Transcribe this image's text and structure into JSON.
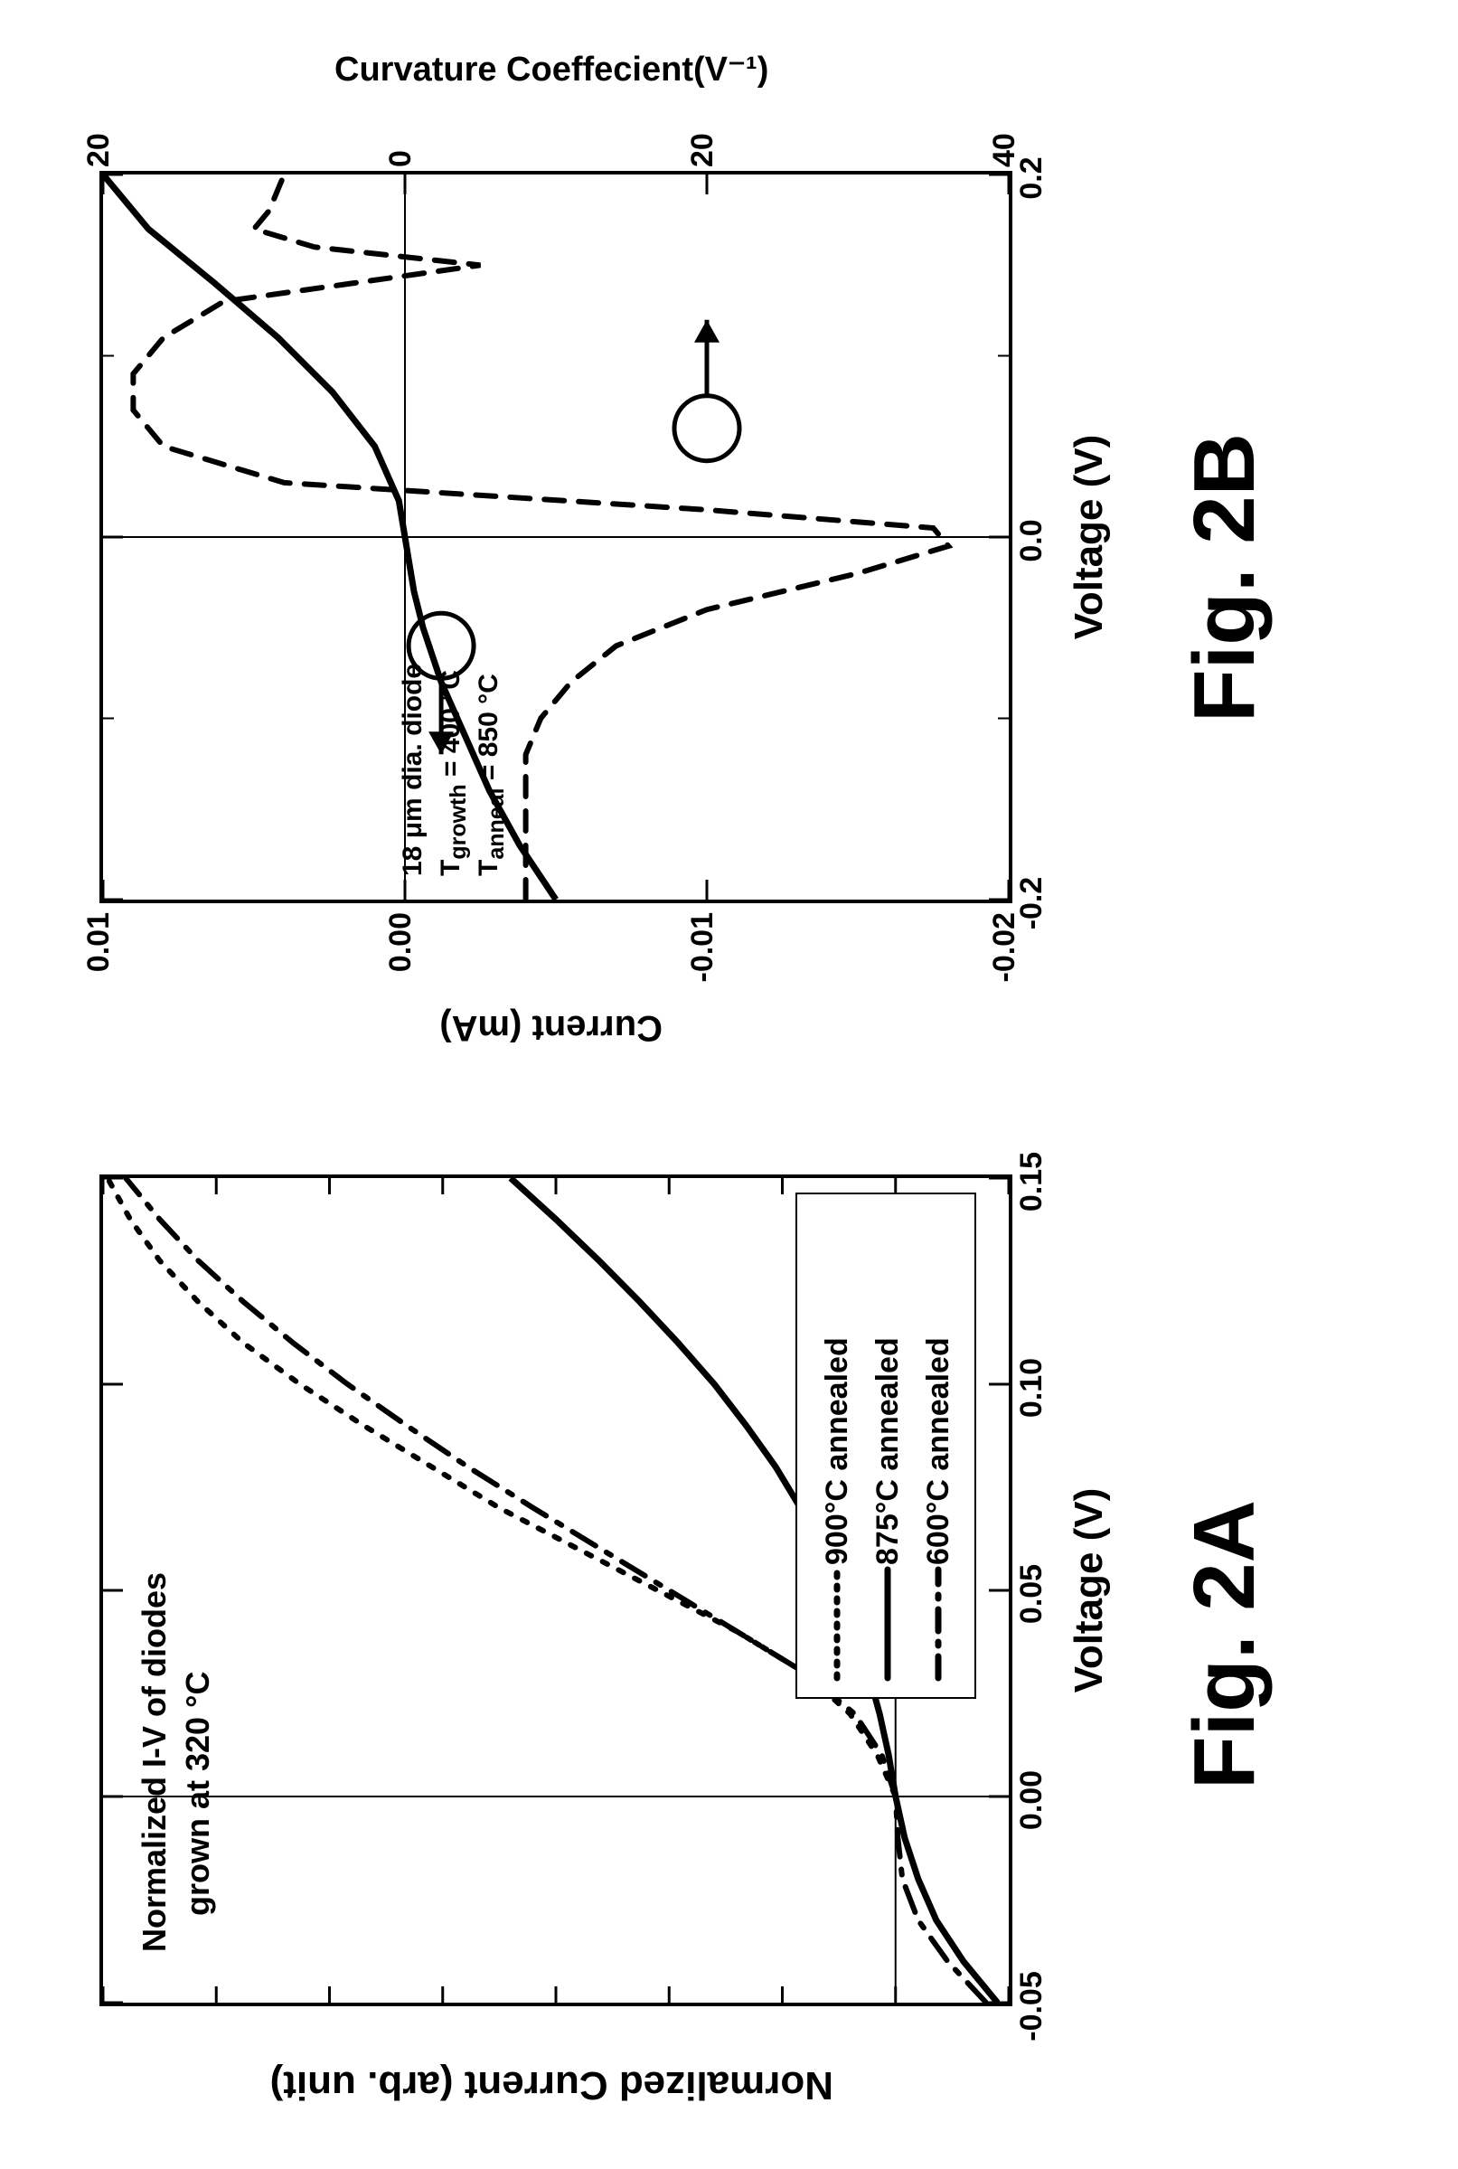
{
  "figA": {
    "label": "Fig. 2A",
    "label_fontsize": 96,
    "xlabel": "Voltage (V)",
    "ylabel": "Normalized Current (arb. unit)",
    "xlabel_fontsize": 44,
    "ylabel_fontsize": 44,
    "tick_fontsize": 34,
    "xlim": [
      -0.05,
      0.15
    ],
    "ylim": [
      -0.5,
      3.5
    ],
    "xticks": [
      -0.05,
      0.0,
      0.05,
      0.1,
      0.15
    ],
    "xtick_labels": [
      "-0.05",
      "0.00",
      "0.05",
      "0.10",
      "0.15"
    ],
    "note_line1": "Normalized I-V of diodes",
    "note_line2": "grown at 320 °C",
    "note_fontsize": 36,
    "legend": {
      "items": [
        {
          "label": "900°C annealed",
          "marker": "dotted"
        },
        {
          "label": "875°C annealed",
          "marker": "solid"
        },
        {
          "label": "600°C annealed",
          "marker": "dashdot"
        }
      ],
      "fontsize": 34
    },
    "series_color": "#000000",
    "series": {
      "s900": [
        [
          -0.05,
          -0.45
        ],
        [
          -0.04,
          -0.3
        ],
        [
          -0.03,
          -0.18
        ],
        [
          -0.02,
          -0.1
        ],
        [
          -0.01,
          -0.04
        ],
        [
          0.0,
          0.0
        ],
        [
          0.01,
          0.08
        ],
        [
          0.02,
          0.2
        ],
        [
          0.03,
          0.4
        ],
        [
          0.04,
          0.7
        ],
        [
          0.05,
          1.05
        ],
        [
          0.06,
          1.4
        ],
        [
          0.07,
          1.75
        ],
        [
          0.08,
          2.05
        ],
        [
          0.09,
          2.35
        ],
        [
          0.1,
          2.63
        ],
        [
          0.11,
          2.88
        ],
        [
          0.12,
          3.08
        ],
        [
          0.13,
          3.25
        ],
        [
          0.14,
          3.38
        ],
        [
          0.15,
          3.48
        ]
      ],
      "s875": [
        [
          -0.05,
          -0.45
        ],
        [
          -0.04,
          -0.3
        ],
        [
          -0.03,
          -0.18
        ],
        [
          -0.02,
          -0.1
        ],
        [
          -0.01,
          -0.04
        ],
        [
          0.0,
          0.0
        ],
        [
          0.01,
          0.03
        ],
        [
          0.02,
          0.07
        ],
        [
          0.03,
          0.12
        ],
        [
          0.04,
          0.18
        ],
        [
          0.05,
          0.25
        ],
        [
          0.06,
          0.33
        ],
        [
          0.07,
          0.42
        ],
        [
          0.08,
          0.53
        ],
        [
          0.09,
          0.66
        ],
        [
          0.1,
          0.8
        ],
        [
          0.11,
          0.96
        ],
        [
          0.12,
          1.13
        ],
        [
          0.13,
          1.31
        ],
        [
          0.14,
          1.5
        ],
        [
          0.15,
          1.7
        ]
      ],
      "s600": [
        [
          -0.05,
          -0.4
        ],
        [
          -0.04,
          -0.23
        ],
        [
          -0.03,
          -0.1
        ],
        [
          -0.02,
          -0.03
        ],
        [
          -0.01,
          -0.01
        ],
        [
          0.0,
          0.0
        ],
        [
          0.01,
          0.06
        ],
        [
          0.02,
          0.18
        ],
        [
          0.03,
          0.4
        ],
        [
          0.04,
          0.7
        ],
        [
          0.05,
          1.0
        ],
        [
          0.06,
          1.3
        ],
        [
          0.07,
          1.6
        ],
        [
          0.08,
          1.89
        ],
        [
          0.09,
          2.16
        ],
        [
          0.1,
          2.42
        ],
        [
          0.11,
          2.66
        ],
        [
          0.12,
          2.88
        ],
        [
          0.13,
          3.08
        ],
        [
          0.14,
          3.25
        ],
        [
          0.15,
          3.4
        ]
      ]
    },
    "line_width": 6
  },
  "figB": {
    "label": "Fig. 2B",
    "label_fontsize": 96,
    "xlabel": "Voltage (V)",
    "ylabel_left": "Current (mA)",
    "ylabel_right": "Curvature Coeffecient(V⁻¹)",
    "xlabel_fontsize": 44,
    "ylabel_fontsize": 40,
    "tick_fontsize": 34,
    "xlim": [
      -0.2,
      0.2
    ],
    "ylim_left": [
      -0.02,
      0.01
    ],
    "ylim_right": [
      -40,
      20
    ],
    "xticks": [
      -0.2,
      0.0,
      0.2
    ],
    "xtick_labels": [
      "-0.2",
      "0.0",
      "0.2"
    ],
    "yticks_left": [
      -0.02,
      -0.01,
      0.0,
      0.01
    ],
    "ytick_labels_left": [
      "-0.02",
      "-0.01",
      "0.00",
      "0.01"
    ],
    "yticks_right": [
      -40,
      -20,
      0,
      20
    ],
    "ytick_labels_right": [
      "40",
      "20",
      "0",
      "20"
    ],
    "note_line1": "18 μm dia. diode",
    "note_line2": "T₍growth₎ = 400 °C",
    "note_line3": "T₍anneal₎ = 850 °C",
    "note_fontsize": 30,
    "note2_line2_html": "T<sub>growth</sub> = 400 °C",
    "note2_line3_html": "T<sub>anneal</sub> = 850 °C",
    "series_color": "#000000",
    "line_width_solid": 7,
    "line_width_dash": 6,
    "series": {
      "current": [
        [
          -0.2,
          -0.005
        ],
        [
          -0.17,
          -0.0038
        ],
        [
          -0.14,
          -0.0028
        ],
        [
          -0.11,
          -0.002
        ],
        [
          -0.08,
          -0.0012
        ],
        [
          -0.05,
          -0.0006
        ],
        [
          -0.03,
          -0.0003
        ],
        [
          -0.01,
          -0.0001
        ],
        [
          0.0,
          0.0
        ],
        [
          0.02,
          0.0002
        ],
        [
          0.05,
          0.001
        ],
        [
          0.08,
          0.0024
        ],
        [
          0.11,
          0.0042
        ],
        [
          0.14,
          0.0063
        ],
        [
          0.17,
          0.0085
        ],
        [
          0.2,
          0.01
        ]
      ],
      "curvature": [
        [
          -0.2,
          -8
        ],
        [
          -0.17,
          -8
        ],
        [
          -0.14,
          -8
        ],
        [
          -0.12,
          -8
        ],
        [
          -0.1,
          -9
        ],
        [
          -0.08,
          -11
        ],
        [
          -0.06,
          -14
        ],
        [
          -0.04,
          -20
        ],
        [
          -0.02,
          -30
        ],
        [
          -0.005,
          -36
        ],
        [
          0.005,
          -35
        ],
        [
          0.015,
          -20
        ],
        [
          0.03,
          8
        ],
        [
          0.05,
          16
        ],
        [
          0.07,
          18
        ],
        [
          0.09,
          18
        ],
        [
          0.11,
          16
        ],
        [
          0.13,
          12
        ],
        [
          0.15,
          -5
        ],
        [
          0.16,
          6
        ],
        [
          0.17,
          10
        ],
        [
          0.18,
          9
        ],
        [
          0.2,
          8
        ]
      ]
    },
    "anno_left_circle": {
      "x": -0.06,
      "y_left": -0.0012
    },
    "anno_right_circle": {
      "x": 0.06,
      "y_right": -20
    }
  },
  "colors": {
    "axis": "#000000",
    "background": "#ffffff"
  }
}
